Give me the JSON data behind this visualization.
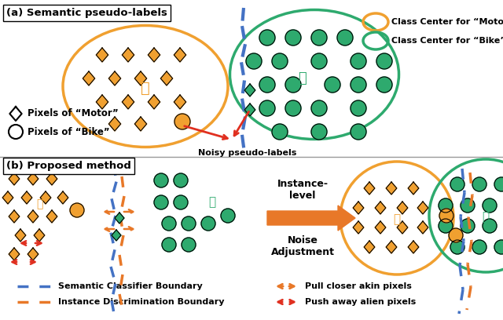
{
  "fig_width": 6.4,
  "fig_height": 4.08,
  "dpi": 100,
  "bg_color": "#ffffff",
  "orange": "#F0A030",
  "green": "#2EAA6E",
  "red": "#E03020",
  "blue_dash": "#4472C4",
  "orange_dash": "#E87828",
  "big_arrow": "#E87828",
  "title_a": "(a) Semantic pseudo-labels",
  "title_b": "(b) Proposed method",
  "legend_motor": "Class Center for “Motor”",
  "legend_bike": "Class Center for “Bike”",
  "label_motor": "Pixels of “Motor”",
  "label_bike": "Pixels of “Bike”",
  "noisy_label": "Noisy pseudo-labels",
  "instance_level": "Instance-\nlevel",
  "noise_adj": "Noise\nAdjustment",
  "sem_boundary": "Semantic Classifier Boundary",
  "inst_boundary": "Instance Discrimination Boundary",
  "pull_label": "Pull closer akin pixels",
  "push_label": "Push away alien pixels"
}
